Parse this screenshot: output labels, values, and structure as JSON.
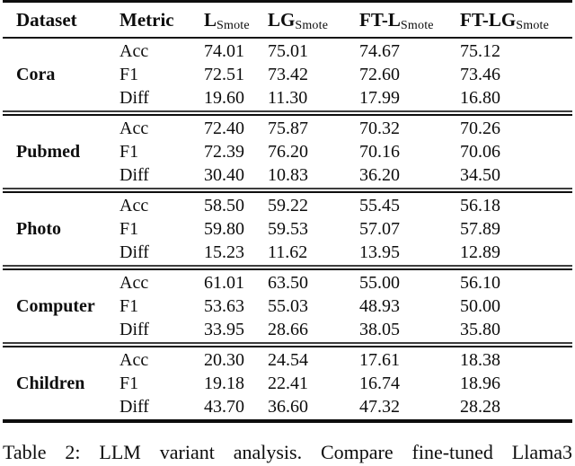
{
  "colors": {
    "background": "#ffffff",
    "text": "#0d0d0d",
    "rule": "#111111"
  },
  "caption": "Table 2: LLM variant analysis. Compare fine-tuned Llama3",
  "table": {
    "header": {
      "dataset": "Dataset",
      "metric": "Metric",
      "methods": [
        {
          "main": "L",
          "sub": "Smote"
        },
        {
          "main": "LG",
          "sub": "Smote"
        },
        {
          "main": "FT-L",
          "sub": "Smote"
        },
        {
          "main": "FT-LG",
          "sub": "Smote"
        }
      ]
    },
    "sections": [
      {
        "dataset": "Cora",
        "rows": [
          {
            "metric": "Acc",
            "values": [
              "74.01",
              "75.01",
              "74.67",
              "75.12"
            ]
          },
          {
            "metric": "F1",
            "values": [
              "72.51",
              "73.42",
              "72.60",
              "73.46"
            ]
          },
          {
            "metric": "Diff",
            "values": [
              "19.60",
              "11.30",
              "17.99",
              "16.80"
            ]
          }
        ]
      },
      {
        "dataset": "Pubmed",
        "rows": [
          {
            "metric": "Acc",
            "values": [
              "72.40",
              "75.87",
              "70.32",
              "70.26"
            ]
          },
          {
            "metric": "F1",
            "values": [
              "72.39",
              "76.20",
              "70.16",
              "70.06"
            ]
          },
          {
            "metric": "Diff",
            "values": [
              "30.40",
              "10.83",
              "36.20",
              "34.50"
            ]
          }
        ]
      },
      {
        "dataset": "Photo",
        "rows": [
          {
            "metric": "Acc",
            "values": [
              "58.50",
              "59.22",
              "55.45",
              "56.18"
            ]
          },
          {
            "metric": "F1",
            "values": [
              "59.80",
              "59.53",
              "57.07",
              "57.89"
            ]
          },
          {
            "metric": "Diff",
            "values": [
              "15.23",
              "11.62",
              "13.95",
              "12.89"
            ]
          }
        ]
      },
      {
        "dataset": "Computer",
        "rows": [
          {
            "metric": "Acc",
            "values": [
              "61.01",
              "63.50",
              "55.00",
              "56.10"
            ]
          },
          {
            "metric": "F1",
            "values": [
              "53.63",
              "55.03",
              "48.93",
              "50.00"
            ]
          },
          {
            "metric": "Diff",
            "values": [
              "33.95",
              "28.66",
              "38.05",
              "35.80"
            ]
          }
        ]
      },
      {
        "dataset": "Children",
        "rows": [
          {
            "metric": "Acc",
            "values": [
              "20.30",
              "24.54",
              "17.61",
              "18.38"
            ]
          },
          {
            "metric": "F1",
            "values": [
              "19.18",
              "22.41",
              "16.74",
              "18.96"
            ]
          },
          {
            "metric": "Diff",
            "values": [
              "43.70",
              "36.60",
              "47.32",
              "28.28"
            ]
          }
        ]
      }
    ]
  }
}
